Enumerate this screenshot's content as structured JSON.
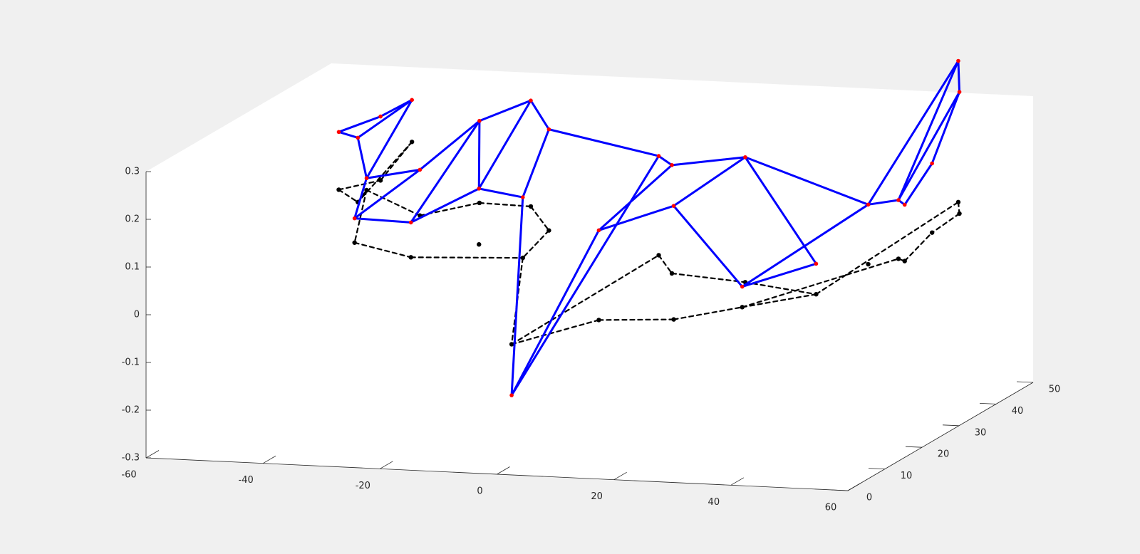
{
  "chart_data": {
    "type": "line",
    "title": "",
    "xlabel": "",
    "ylabel": "",
    "zlabel": "",
    "projection": "3d",
    "grid": false,
    "legend": "none",
    "colors": {
      "deformed": "#0000ff",
      "node": "#ff0000",
      "original": "#000000",
      "background": "#f0f0f0",
      "axes": "#ffffff"
    },
    "axes": {
      "x": {
        "range": [
          -60,
          60
        ],
        "ticks": [
          -60,
          -40,
          -20,
          0,
          20,
          40,
          60
        ],
        "tick_labels": [
          "-60",
          "-40",
          "-20",
          "0",
          "20",
          "40",
          "60"
        ]
      },
      "y": {
        "range": [
          0,
          50
        ],
        "ticks": [
          0,
          10,
          20,
          30,
          40,
          50
        ],
        "tick_labels": [
          "0",
          "10",
          "20",
          "30",
          "40",
          "50"
        ]
      },
      "z": {
        "range": [
          -0.3,
          0.3
        ],
        "ticks": [
          -0.3,
          -0.2,
          -0.1,
          0,
          0.1,
          0.2,
          0.3
        ],
        "tick_labels": [
          "-0.3",
          "-0.2",
          "-0.1",
          "0",
          "0.1",
          "0.2",
          "0.3"
        ]
      }
    },
    "series": [
      {
        "style": "solid-blue-with-red-markers",
        "nodes": [
          [
            -40.1,
            20.6,
            0.301
          ],
          [
            -36.0,
            25.4,
            0.314
          ],
          [
            -35.0,
            32.3,
            0.318
          ],
          [
            -35.0,
            17.7,
            0.305
          ],
          [
            -33.0,
            16.9,
            0.225
          ],
          [
            -31.0,
            10.5,
            0.171
          ],
          [
            -28.0,
            23.4,
            0.216
          ],
          [
            -22.0,
            11.5,
            0.163
          ],
          [
            -22.0,
            30.0,
            0.292
          ],
          [
            -15.5,
            33.6,
            0.322
          ],
          [
            -10.0,
            29.8,
            0.282
          ],
          [
            -16.0,
            20.4,
            0.197
          ],
          [
            -8.0,
            19.6,
            0.187
          ],
          [
            2.0,
            0.8,
            -0.137
          ],
          [
            14.1,
            21.4,
            0.278
          ],
          [
            15.7,
            2.7,
            0.208
          ],
          [
            21.1,
            13.9,
            0.297
          ],
          [
            28.7,
            2.4,
            0.268
          ],
          [
            35.1,
            11.6,
            0.332
          ],
          [
            48.3,
            9.9,
            0.124
          ],
          [
            40.1,
            2.9,
            0.103
          ],
          [
            51.0,
            19.7,
            0.205
          ],
          [
            53.6,
            39.9,
            0.416
          ],
          [
            55.6,
            20.6,
            0.213
          ],
          [
            56.9,
            35.0,
            0.375
          ],
          [
            58.5,
            17.7,
            0.218
          ],
          [
            59.0,
            24.3,
            0.275
          ]
        ],
        "edges": [
          [
            0,
            1
          ],
          [
            0,
            3
          ],
          [
            1,
            2
          ],
          [
            2,
            3
          ],
          [
            2,
            4
          ],
          [
            3,
            4
          ],
          [
            4,
            5
          ],
          [
            4,
            6
          ],
          [
            5,
            6
          ],
          [
            5,
            7
          ],
          [
            6,
            8
          ],
          [
            7,
            8
          ],
          [
            7,
            11
          ],
          [
            8,
            9
          ],
          [
            8,
            11
          ],
          [
            9,
            10
          ],
          [
            9,
            11
          ],
          [
            11,
            12
          ],
          [
            10,
            12
          ],
          [
            10,
            14
          ],
          [
            12,
            13
          ],
          [
            13,
            14
          ],
          [
            13,
            15
          ],
          [
            14,
            16
          ],
          [
            15,
            16
          ],
          [
            15,
            17
          ],
          [
            16,
            18
          ],
          [
            17,
            18
          ],
          [
            17,
            20
          ],
          [
            18,
            19
          ],
          [
            19,
            20
          ],
          [
            18,
            21
          ],
          [
            20,
            21
          ],
          [
            21,
            22
          ],
          [
            21,
            23
          ],
          [
            22,
            23
          ],
          [
            22,
            24
          ],
          [
            23,
            24
          ],
          [
            23,
            25
          ],
          [
            24,
            26
          ],
          [
            25,
            26
          ]
        ]
      },
      {
        "style": "dashed-black-with-black-markers",
        "nodes": [
          [
            -40.1,
            20.6,
            0.18
          ],
          [
            -36.0,
            25.4,
            0.18
          ],
          [
            -35.0,
            32.3,
            0.23
          ],
          [
            -35.0,
            17.7,
            0.17
          ],
          [
            -33.0,
            16.9,
            0.2
          ],
          [
            -31.0,
            10.5,
            0.12
          ],
          [
            -28.0,
            23.4,
            0.12
          ],
          [
            -22.0,
            11.5,
            0.09
          ],
          [
            -22.0,
            30.0,
            0.12
          ],
          [
            -15.5,
            33.6,
            0.1
          ],
          [
            -10.0,
            29.8,
            0.07
          ],
          [
            -16.0,
            20.4,
            0.08
          ],
          [
            -8.0,
            19.6,
            0.06
          ],
          [
            2.0,
            0.8,
            -0.03
          ],
          [
            14.1,
            21.4,
            0.07
          ],
          [
            15.7,
            2.7,
            0.02
          ],
          [
            21.1,
            13.9,
            0.07
          ],
          [
            28.7,
            2.4,
            0.03
          ],
          [
            35.1,
            11.6,
            0.07
          ],
          [
            48.3,
            9.9,
            0.06
          ],
          [
            40.1,
            2.9,
            0.06
          ],
          [
            51.0,
            19.7,
            0.08
          ],
          [
            53.6,
            39.9,
            0.12
          ],
          [
            55.6,
            20.6,
            0.09
          ],
          [
            56.9,
            35.0,
            0.12
          ],
          [
            58.5,
            17.7,
            0.1
          ],
          [
            59.0,
            24.3,
            0.13
          ]
        ],
        "edges": [
          [
            0,
            1
          ],
          [
            0,
            3
          ],
          [
            1,
            2
          ],
          [
            2,
            3
          ],
          [
            3,
            4
          ],
          [
            4,
            5
          ],
          [
            4,
            6
          ],
          [
            5,
            7
          ],
          [
            6,
            8
          ],
          [
            7,
            12
          ],
          [
            8,
            9
          ],
          [
            9,
            10
          ],
          [
            10,
            12
          ],
          [
            12,
            13
          ],
          [
            13,
            14
          ],
          [
            13,
            15
          ],
          [
            14,
            16
          ],
          [
            15,
            17
          ],
          [
            16,
            18
          ],
          [
            17,
            20
          ],
          [
            18,
            19
          ],
          [
            19,
            20
          ],
          [
            20,
            23
          ],
          [
            19,
            22
          ],
          [
            22,
            24
          ],
          [
            23,
            25
          ],
          [
            24,
            26
          ],
          [
            25,
            26
          ]
        ]
      }
    ]
  }
}
